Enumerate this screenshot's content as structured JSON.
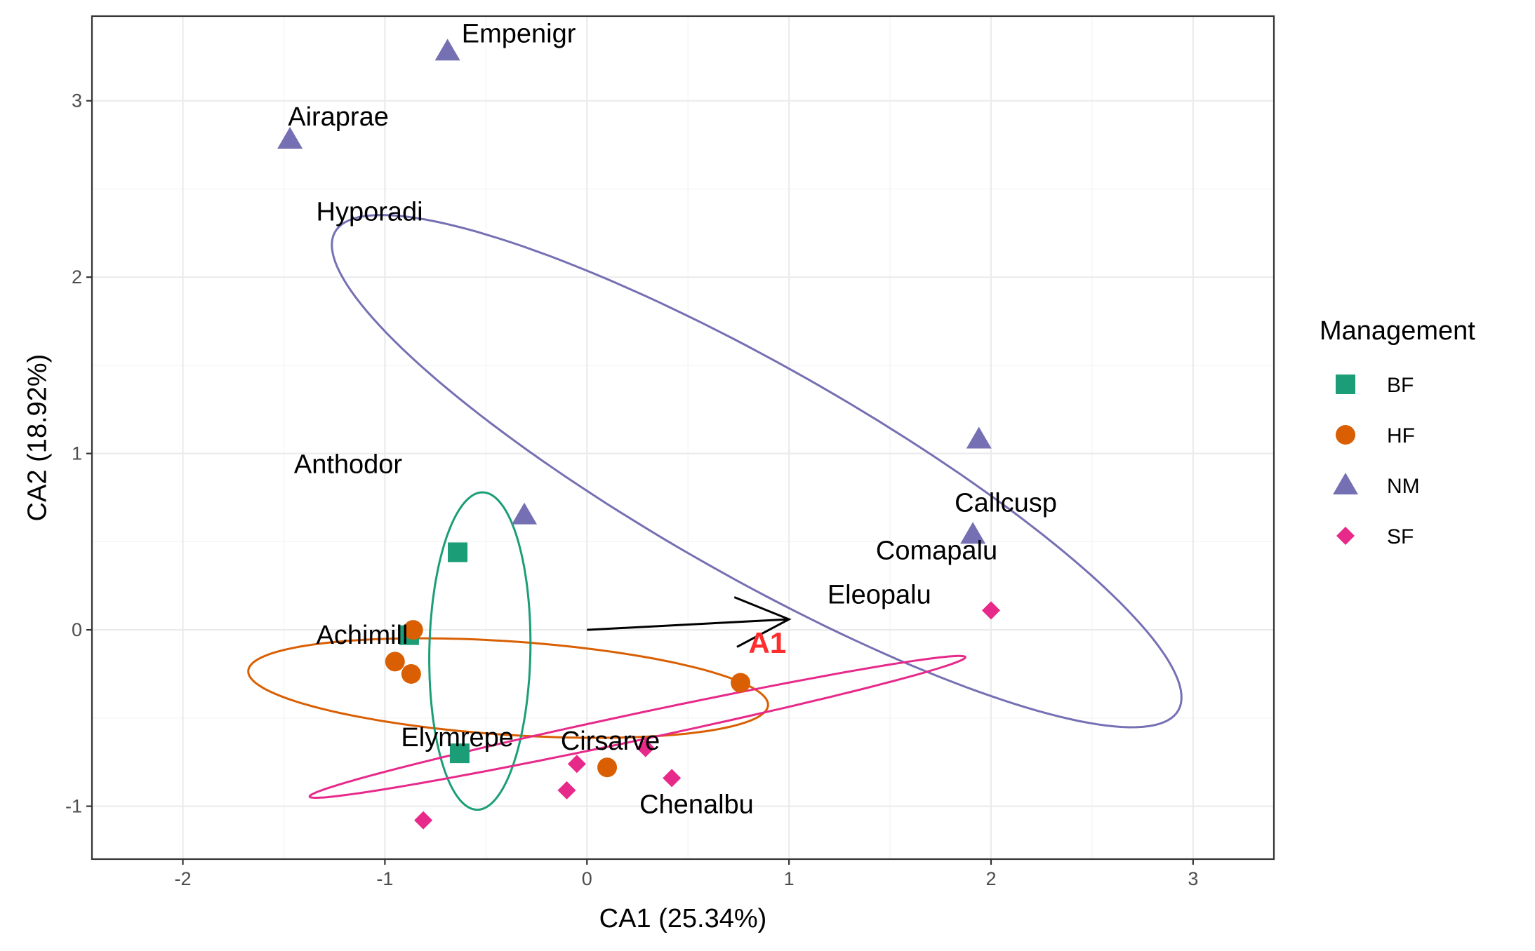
{
  "chart_data": {
    "type": "scatter",
    "xlabel": "CA1 (25.34%)",
    "ylabel": "CA2 (18.92%)",
    "xlim": [
      -2.45,
      3.4
    ],
    "ylim": [
      -1.3,
      3.48
    ],
    "x_ticks": [
      -2,
      -1,
      0,
      1,
      2,
      3
    ],
    "y_ticks": [
      -1,
      0,
      1,
      2,
      3
    ],
    "x_tick_labels": [
      "-2",
      "-1",
      "0",
      "1",
      "2",
      "3"
    ],
    "y_tick_labels": [
      "-1",
      "0",
      "1",
      "2",
      "3"
    ],
    "grid": true,
    "legend": {
      "title": "Management",
      "placement": "right",
      "entries": [
        {
          "label": "BF",
          "shape": "square",
          "color": "#1b9e77"
        },
        {
          "label": "HF",
          "shape": "circle",
          "color": "#d95f02"
        },
        {
          "label": "NM",
          "shape": "triangle",
          "color": "#7570b3"
        },
        {
          "label": "SF",
          "shape": "diamond",
          "color": "#e7298a"
        }
      ]
    },
    "series": [
      {
        "name": "BF",
        "shape": "square",
        "color": "#1b9e77",
        "points": [
          {
            "x": -0.64,
            "y": 0.44
          },
          {
            "x": -0.88,
            "y": -0.03
          },
          {
            "x": -0.63,
            "y": -0.7
          }
        ]
      },
      {
        "name": "HF",
        "shape": "circle",
        "color": "#d95f02",
        "points": [
          {
            "x": -0.86,
            "y": 0.0
          },
          {
            "x": -0.95,
            "y": -0.18
          },
          {
            "x": -0.87,
            "y": -0.25
          },
          {
            "x": 0.76,
            "y": -0.3
          },
          {
            "x": 0.1,
            "y": -0.78
          }
        ]
      },
      {
        "name": "NM",
        "shape": "triangle",
        "color": "#7570b3",
        "points": [
          {
            "x": -0.69,
            "y": 3.28
          },
          {
            "x": -1.47,
            "y": 2.78
          },
          {
            "x": 1.94,
            "y": 1.08
          },
          {
            "x": -0.31,
            "y": 0.65
          },
          {
            "x": 1.91,
            "y": 0.54
          }
        ]
      },
      {
        "name": "SF",
        "shape": "diamond",
        "color": "#e7298a",
        "points": [
          {
            "x": 2.0,
            "y": 0.11
          },
          {
            "x": 0.29,
            "y": -0.67
          },
          {
            "x": -0.05,
            "y": -0.76
          },
          {
            "x": 0.42,
            "y": -0.84
          },
          {
            "x": -0.1,
            "y": -0.91
          },
          {
            "x": -0.81,
            "y": -1.08
          }
        ]
      }
    ],
    "ellipses": [
      {
        "group": "NM",
        "color": "#7570b3",
        "cx": 0.84,
        "cy": 0.9,
        "rx": 2.49,
        "ry": 0.575,
        "angle_deg": -33.4
      },
      {
        "group": "HF",
        "color": "#d95f02",
        "cx": -0.39,
        "cy": -0.33,
        "rx": 1.29,
        "ry": 0.265,
        "angle_deg": -4.4
      },
      {
        "group": "BF",
        "color": "#1b9e77",
        "cx": -0.53,
        "cy": -0.12,
        "rx": 0.9,
        "ry": 0.25,
        "angle_deg": 89.1
      },
      {
        "group": "SF",
        "color": "#e7298a",
        "cx": 0.25,
        "cy": -0.55,
        "rx": 1.67,
        "ry": 0.075,
        "angle_deg": 13.7
      }
    ],
    "species": [
      {
        "label": "Empenigr",
        "x": -0.62,
        "y": 3.33
      },
      {
        "label": "Airaprae",
        "x": -1.48,
        "y": 2.86
      },
      {
        "label": "Hyporadi",
        "x": -1.34,
        "y": 2.32
      },
      {
        "label": "Anthodor",
        "x": -1.45,
        "y": 0.89
      },
      {
        "label": "Callcusp",
        "x": 1.82,
        "y": 0.67
      },
      {
        "label": "Comapalu",
        "x": 1.43,
        "y": 0.4
      },
      {
        "label": "Eleopalu",
        "x": 1.19,
        "y": 0.15
      },
      {
        "label": "Achimill",
        "x": -1.34,
        "y": -0.08
      },
      {
        "label": "Elymrepe",
        "x": -0.92,
        "y": -0.66
      },
      {
        "label": "Cirsarve",
        "x": -0.13,
        "y": -0.68
      },
      {
        "label": "Chenalbu",
        "x": 0.26,
        "y": -1.04
      }
    ],
    "env_vector": {
      "label": "A1",
      "color": "#ff2d2d",
      "x0": 0.0,
      "y0": 0.0,
      "x1": 1.0,
      "y1": 0.06,
      "label_x": 0.8,
      "label_y": -0.13
    }
  }
}
